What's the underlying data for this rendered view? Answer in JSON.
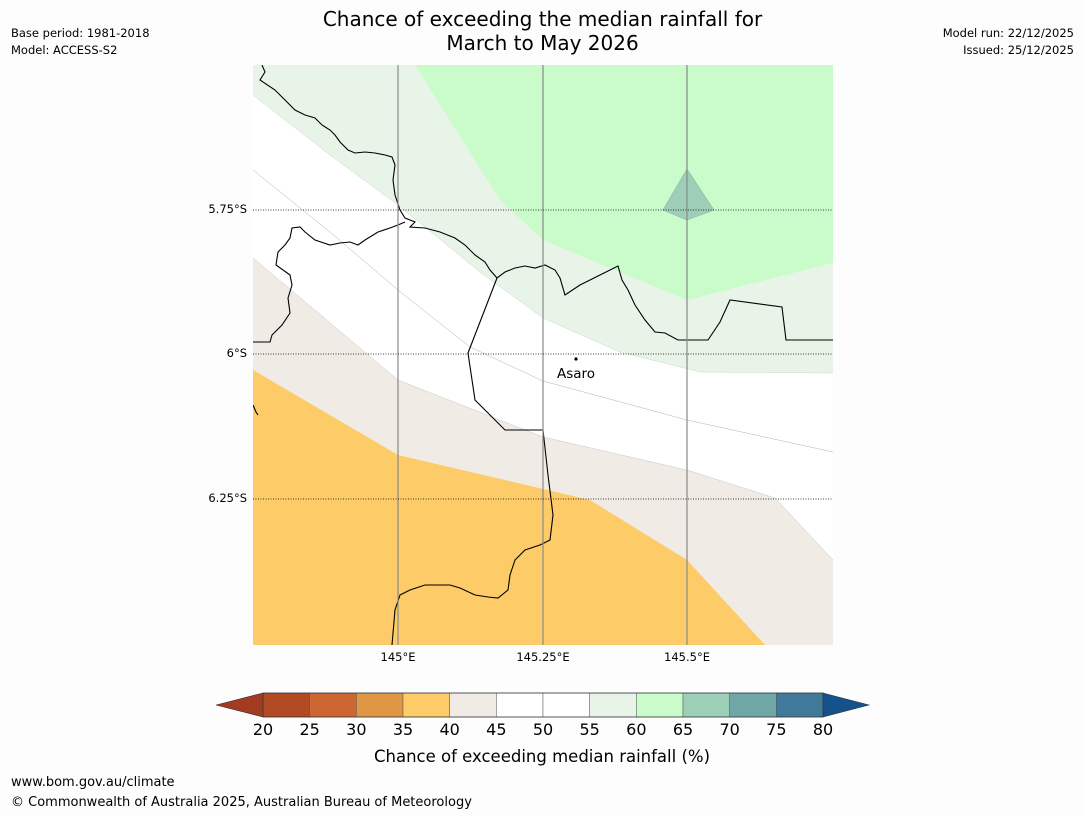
{
  "title": {
    "line1": "Chance of exceeding the median rainfall for",
    "line2": "March to May 2026"
  },
  "meta_left": {
    "base_period": "Base period: 1981-2018",
    "model": "Model: ACCESS-S2"
  },
  "meta_right": {
    "model_run": "Model run: 22/12/2025",
    "issued": "Issued: 25/12/2025"
  },
  "map": {
    "place_label": "Asaro",
    "lat_labels": [
      "5.75°S",
      "6°S",
      "6.25°S"
    ],
    "lon_labels": [
      "145°E",
      "145.25°E",
      "145.5°E"
    ]
  },
  "colorbar": {
    "label": "Chance of exceeding median rainfall (%)",
    "ticks": [
      "20",
      "25",
      "30",
      "35",
      "40",
      "45",
      "50",
      "55",
      "60",
      "65",
      "70",
      "75",
      "80"
    ],
    "low_extend_color": "#a33b22",
    "high_extend_color": "#15518a",
    "bins": [
      {
        "range": "20-25",
        "color": "#b24a24"
      },
      {
        "range": "25-30",
        "color": "#cd6632"
      },
      {
        "range": "30-35",
        "color": "#e19645"
      },
      {
        "range": "35-40",
        "color": "#fdcb67"
      },
      {
        "range": "40-45",
        "color": "#f0ebe5"
      },
      {
        "range": "45-50",
        "color": "#ffffff"
      },
      {
        "range": "50-55",
        "color": "#ffffff"
      },
      {
        "range": "55-60",
        "color": "#e9f4e8"
      },
      {
        "range": "60-65",
        "color": "#c9fcca"
      },
      {
        "range": "65-70",
        "color": "#9dcfb8"
      },
      {
        "range": "70-75",
        "color": "#6fa7a6"
      },
      {
        "range": "75-80",
        "color": "#3f7a9a"
      }
    ]
  },
  "footer": {
    "url": "www.bom.gov.au/climate",
    "copyright": "© Commonwealth of Australia 2025, Australian Bureau of Meteorology"
  }
}
